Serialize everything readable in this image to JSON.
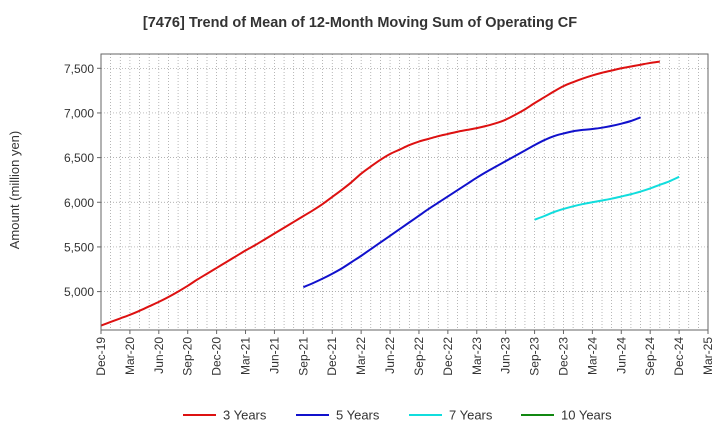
{
  "chart_data": {
    "type": "line",
    "title": "[7476]  Trend of Mean of 12-Month Moving Sum of Operating CF",
    "xlabel": "",
    "ylabel": "Amount (million yen)",
    "ylim": [
      4570,
      7660
    ],
    "yticks": [
      5000,
      5500,
      6000,
      6500,
      7000,
      7500
    ],
    "ytick_labels": [
      "5,000",
      "5,500",
      "6,000",
      "6,500",
      "7,000",
      "7,500"
    ],
    "x_months": [
      "Dec-19",
      "Jan-20",
      "Feb-20",
      "Mar-20",
      "Apr-20",
      "May-20",
      "Jun-20",
      "Jul-20",
      "Aug-20",
      "Sep-20",
      "Oct-20",
      "Nov-20",
      "Dec-20",
      "Jan-21",
      "Feb-21",
      "Mar-21",
      "Apr-21",
      "May-21",
      "Jun-21",
      "Jul-21",
      "Aug-21",
      "Sep-21",
      "Oct-21",
      "Nov-21",
      "Dec-21",
      "Jan-22",
      "Feb-22",
      "Mar-22",
      "Apr-22",
      "May-22",
      "Jun-22",
      "Jul-22",
      "Aug-22",
      "Sep-22",
      "Oct-22",
      "Nov-22",
      "Dec-22",
      "Jan-23",
      "Feb-23",
      "Mar-23",
      "Apr-23",
      "May-23",
      "Jun-23",
      "Jul-23",
      "Aug-23",
      "Sep-23",
      "Oct-23",
      "Nov-23",
      "Dec-23",
      "Jan-24",
      "Feb-24",
      "Mar-24",
      "Apr-24",
      "May-24",
      "Jun-24",
      "Jul-24",
      "Aug-24",
      "Sep-24",
      "Oct-24",
      "Nov-24",
      "Dec-24",
      "Jan-25",
      "Feb-25",
      "Mar-25"
    ],
    "xtick_labels": [
      "Dec-19",
      "Mar-20",
      "Jun-20",
      "Sep-20",
      "Dec-20",
      "Mar-21",
      "Jun-21",
      "Sep-21",
      "Dec-21",
      "Mar-22",
      "Jun-22",
      "Sep-22",
      "Dec-22",
      "Mar-23",
      "Jun-23",
      "Sep-23",
      "Dec-23",
      "Mar-24",
      "Jun-24",
      "Sep-24",
      "Dec-24",
      "Mar-25"
    ],
    "grid": true,
    "legend_position": "bottom",
    "series": [
      {
        "name": "3 Years",
        "color": "#dd1111",
        "start_index": 0,
        "values": [
          4620,
          4660,
          4700,
          4740,
          4785,
          4835,
          4885,
          4940,
          5000,
          5065,
          5135,
          5200,
          5265,
          5330,
          5395,
          5460,
          5520,
          5585,
          5650,
          5715,
          5780,
          5845,
          5910,
          5980,
          6060,
          6140,
          6225,
          6320,
          6400,
          6475,
          6540,
          6590,
          6640,
          6680,
          6710,
          6740,
          6765,
          6790,
          6810,
          6830,
          6855,
          6885,
          6925,
          6980,
          7040,
          7110,
          7175,
          7240,
          7300,
          7345,
          7385,
          7420,
          7450,
          7475,
          7500,
          7520,
          7540,
          7560,
          7575
        ]
      },
      {
        "name": "5 Years",
        "color": "#1111cc",
        "start_index": 21,
        "values": [
          5050,
          5095,
          5145,
          5200,
          5260,
          5330,
          5400,
          5475,
          5550,
          5625,
          5700,
          5775,
          5850,
          5925,
          5995,
          6065,
          6135,
          6205,
          6275,
          6340,
          6400,
          6460,
          6520,
          6580,
          6640,
          6695,
          6740,
          6770,
          6795,
          6810,
          6820,
          6835,
          6855,
          6880,
          6910,
          6950
        ]
      },
      {
        "name": "7 Years",
        "color": "#11dddd",
        "start_index": 45,
        "values": [
          5805,
          5845,
          5890,
          5925,
          5955,
          5980,
          6000,
          6020,
          6040,
          6065,
          6090,
          6120,
          6155,
          6195,
          6235,
          6285
        ]
      },
      {
        "name": "10 Years",
        "color": "#118811",
        "start_index": 0,
        "values": []
      }
    ]
  }
}
